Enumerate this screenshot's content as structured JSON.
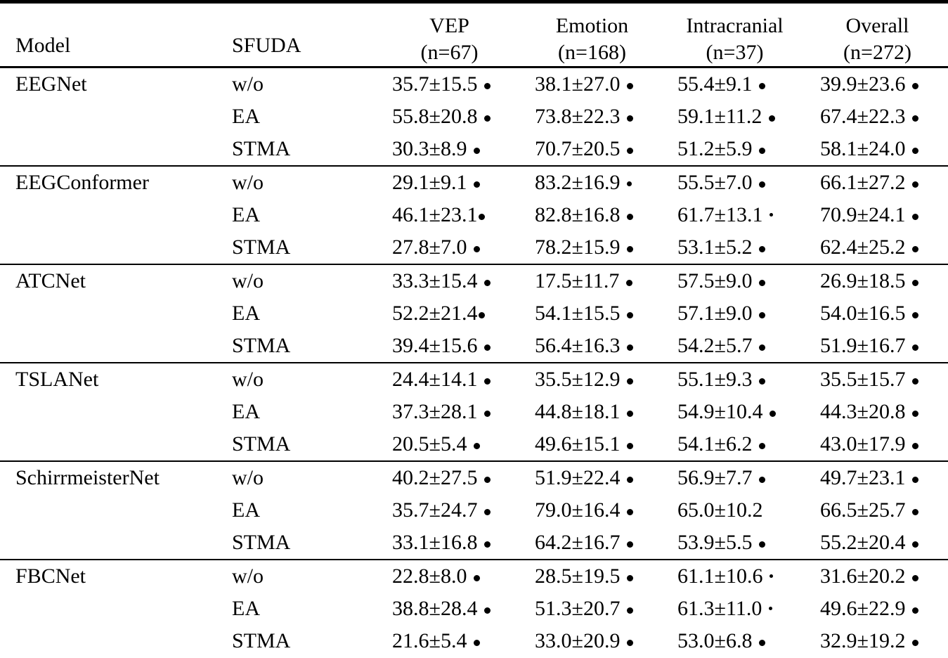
{
  "header": {
    "model": "Model",
    "sfuda": "SFUDA",
    "cols": [
      {
        "name": "VEP",
        "n": "(n=67)"
      },
      {
        "name": "Emotion",
        "n": "(n=168)"
      },
      {
        "name": "Intracranial",
        "n": "(n=37)"
      },
      {
        "name": "Overall",
        "n": "(n=272)"
      }
    ]
  },
  "groups": [
    {
      "model": "EEGNet",
      "rows": [
        {
          "sfuda": "w/o",
          "cells": [
            {
              "value": "35.7±15.5",
              "marker": "large"
            },
            {
              "value": "38.1±27.0",
              "marker": "large"
            },
            {
              "value": "55.4±9.1",
              "marker": "large"
            },
            {
              "value": "39.9±23.6",
              "marker": "large"
            }
          ]
        },
        {
          "sfuda": "EA",
          "cells": [
            {
              "value": "55.8±20.8",
              "marker": "large"
            },
            {
              "value": "73.8±22.3",
              "marker": "large"
            },
            {
              "value": "59.1±11.2",
              "marker": "large"
            },
            {
              "value": "67.4±22.3",
              "marker": "large"
            }
          ]
        },
        {
          "sfuda": "STMA",
          "cells": [
            {
              "value": "30.3±8.9",
              "marker": "large"
            },
            {
              "value": "70.7±20.5",
              "marker": "large"
            },
            {
              "value": "51.2±5.9",
              "marker": "large"
            },
            {
              "value": "58.1±24.0",
              "marker": "large"
            }
          ]
        }
      ]
    },
    {
      "model": "EEGConformer",
      "rows": [
        {
          "sfuda": "w/o",
          "cells": [
            {
              "value": "29.1±9.1",
              "marker": "large"
            },
            {
              "value": "83.2±16.9",
              "marker": "medium"
            },
            {
              "value": "55.5±7.0",
              "marker": "large"
            },
            {
              "value": "66.1±27.2",
              "marker": "large"
            }
          ]
        },
        {
          "sfuda": "EA",
          "cells": [
            {
              "value": "46.1±23.1",
              "marker": "large",
              "gap": "no"
            },
            {
              "value": "82.8±16.8",
              "marker": "large"
            },
            {
              "value": "61.7±13.1",
              "marker": "small"
            },
            {
              "value": "70.9±24.1",
              "marker": "large"
            }
          ]
        },
        {
          "sfuda": "STMA",
          "cells": [
            {
              "value": "27.8±7.0",
              "marker": "large"
            },
            {
              "value": "78.2±15.9",
              "marker": "large"
            },
            {
              "value": "53.1±5.2",
              "marker": "large"
            },
            {
              "value": "62.4±25.2",
              "marker": "large"
            }
          ]
        }
      ]
    },
    {
      "model": "ATCNet",
      "rows": [
        {
          "sfuda": "w/o",
          "cells": [
            {
              "value": "33.3±15.4",
              "marker": "large"
            },
            {
              "value": "17.5±11.7",
              "marker": "large"
            },
            {
              "value": "57.5±9.0",
              "marker": "large"
            },
            {
              "value": "26.9±18.5",
              "marker": "large"
            }
          ]
        },
        {
          "sfuda": "EA",
          "cells": [
            {
              "value": "52.2±21.4",
              "marker": "large",
              "gap": "no"
            },
            {
              "value": "54.1±15.5",
              "marker": "large"
            },
            {
              "value": "57.1±9.0",
              "marker": "large"
            },
            {
              "value": "54.0±16.5",
              "marker": "large"
            }
          ]
        },
        {
          "sfuda": "STMA",
          "cells": [
            {
              "value": "39.4±15.6",
              "marker": "large"
            },
            {
              "value": "56.4±16.3",
              "marker": "large"
            },
            {
              "value": "54.2±5.7",
              "marker": "large"
            },
            {
              "value": "51.9±16.7",
              "marker": "large"
            }
          ]
        }
      ]
    },
    {
      "model": "TSLANet",
      "rows": [
        {
          "sfuda": "w/o",
          "cells": [
            {
              "value": "24.4±14.1",
              "marker": "large"
            },
            {
              "value": "35.5±12.9",
              "marker": "large"
            },
            {
              "value": "55.1±9.3",
              "marker": "large"
            },
            {
              "value": "35.5±15.7",
              "marker": "large"
            }
          ]
        },
        {
          "sfuda": "EA",
          "cells": [
            {
              "value": "37.3±28.1",
              "marker": "large"
            },
            {
              "value": "44.8±18.1",
              "marker": "large"
            },
            {
              "value": "54.9±10.4",
              "marker": "large"
            },
            {
              "value": "44.3±20.8",
              "marker": "large"
            }
          ]
        },
        {
          "sfuda": "STMA",
          "cells": [
            {
              "value": "20.5±5.4",
              "marker": "large"
            },
            {
              "value": "49.6±15.1",
              "marker": "large"
            },
            {
              "value": "54.1±6.2",
              "marker": "large"
            },
            {
              "value": "43.0±17.9",
              "marker": "large"
            }
          ]
        }
      ]
    },
    {
      "model": "SchirrmeisterNet",
      "rows": [
        {
          "sfuda": "w/o",
          "cells": [
            {
              "value": "40.2±27.5",
              "marker": "large"
            },
            {
              "value": "51.9±22.4",
              "marker": "large"
            },
            {
              "value": "56.9±7.7",
              "marker": "large"
            },
            {
              "value": "49.7±23.1",
              "marker": "large"
            }
          ]
        },
        {
          "sfuda": "EA",
          "cells": [
            {
              "value": "35.7±24.7",
              "marker": "large"
            },
            {
              "value": "79.0±16.4",
              "marker": "large"
            },
            {
              "value": "65.0±10.2",
              "marker": "none"
            },
            {
              "value": "66.5±25.7",
              "marker": "large"
            }
          ]
        },
        {
          "sfuda": "STMA",
          "cells": [
            {
              "value": "33.1±16.8",
              "marker": "large"
            },
            {
              "value": "64.2±16.7",
              "marker": "large"
            },
            {
              "value": "53.9±5.5",
              "marker": "large"
            },
            {
              "value": "55.2±20.4",
              "marker": "large"
            }
          ]
        }
      ]
    },
    {
      "model": "FBCNet",
      "rows": [
        {
          "sfuda": "w/o",
          "cells": [
            {
              "value": "22.8±8.0",
              "marker": "large"
            },
            {
              "value": "28.5±19.5",
              "marker": "large"
            },
            {
              "value": "61.1±10.6",
              "marker": "small"
            },
            {
              "value": "31.6±20.2",
              "marker": "large"
            }
          ]
        },
        {
          "sfuda": "EA",
          "cells": [
            {
              "value": "38.8±28.4",
              "marker": "large"
            },
            {
              "value": "51.3±20.7",
              "marker": "large"
            },
            {
              "value": "61.3±11.0",
              "marker": "small"
            },
            {
              "value": "49.6±22.9",
              "marker": "large"
            }
          ]
        },
        {
          "sfuda": "STMA",
          "cells": [
            {
              "value": "21.6±5.4",
              "marker": "large"
            },
            {
              "value": "33.0±20.9",
              "marker": "large"
            },
            {
              "value": "53.0±6.8",
              "marker": "large"
            },
            {
              "value": "32.9±19.2",
              "marker": "large"
            }
          ]
        }
      ]
    }
  ]
}
